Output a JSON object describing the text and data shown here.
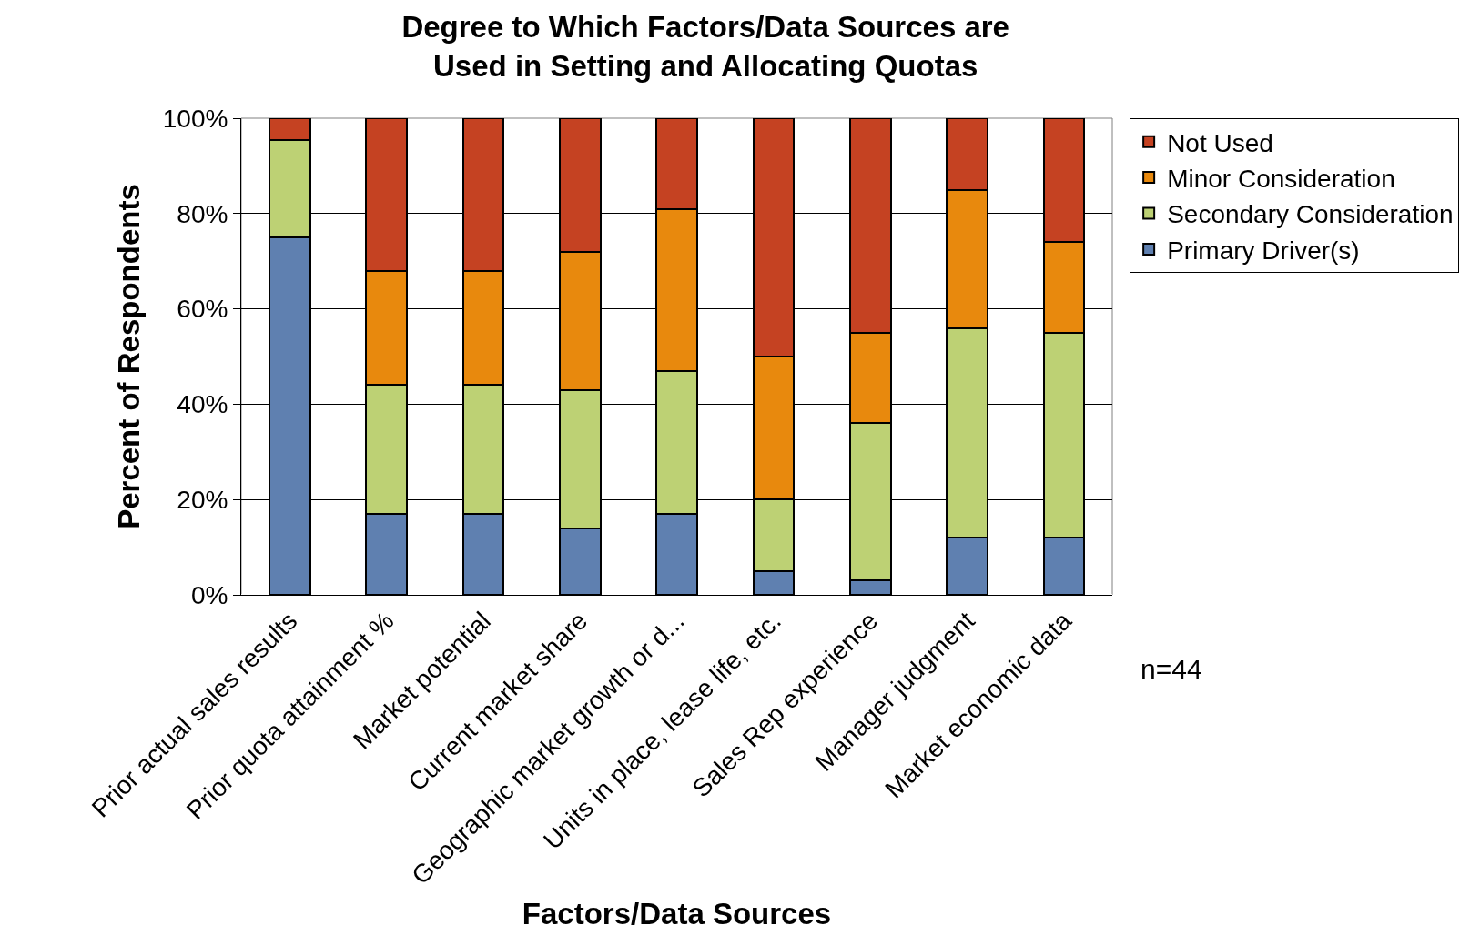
{
  "chart_data": {
    "type": "bar",
    "stacked": true,
    "title": "Degree to Which Factors/Data Sources are Used in Setting and Allocating Quotas",
    "xlabel": "Factors/Data Sources",
    "ylabel": "Percent of Respondents",
    "categories": [
      "Prior actual sales results",
      "Prior quota attainment %",
      "Market potential",
      "Current market share",
      "Geographic market growth or d...",
      "Units in place, lease life, etc.",
      "Sales Rep experience",
      "Manager judgment",
      "Market economic data"
    ],
    "series": [
      {
        "name": "Primary Driver(s)",
        "color": "#5f80b0",
        "values": [
          75,
          17,
          17,
          14,
          17,
          5,
          3,
          12,
          12
        ]
      },
      {
        "name": "Secondary Consideration",
        "color": "#bdd174",
        "values": [
          20.5,
          27,
          27,
          29,
          30,
          15,
          33,
          44,
          43
        ]
      },
      {
        "name": "Minor Consideration",
        "color": "#e8890d",
        "values": [
          0,
          24,
          24,
          29,
          34,
          30,
          19,
          29,
          19
        ]
      },
      {
        "name": "Not Used",
        "color": "#c54222",
        "values": [
          4.5,
          32,
          32,
          28,
          19,
          50,
          45,
          15,
          26
        ]
      }
    ],
    "ylim": [
      0,
      100
    ],
    "yticks": [
      {
        "value": 0,
        "label": "0%"
      },
      {
        "value": 20,
        "label": "20%"
      },
      {
        "value": 40,
        "label": "40%"
      },
      {
        "value": 60,
        "label": "60%"
      },
      {
        "value": 80,
        "label": "80%"
      },
      {
        "value": 100,
        "label": "100%"
      }
    ],
    "grid": "y",
    "legend": "right",
    "annotations": [
      "n=44"
    ]
  }
}
